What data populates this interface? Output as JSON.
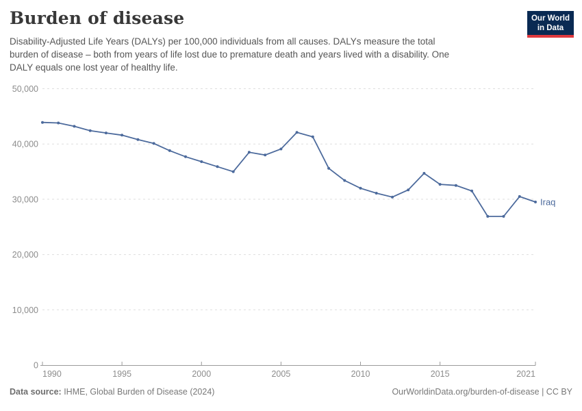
{
  "header": {
    "title": "Burden of disease",
    "subtitle_lines": [
      "Disability-Adjusted Life Years (DALYs) per 100,000 individuals from all causes. DALYs measure the total",
      "burden of disease – both from years of life lost due to premature death and years lived with a disability. One",
      "DALY equals one lost year of healthy life."
    ],
    "logo": {
      "line1": "Our World",
      "line2": "in Data",
      "bg_color": "#0a2a53",
      "accent_color": "#e0393e"
    }
  },
  "chart_data": {
    "type": "line",
    "title": "Burden of disease",
    "xlabel": "",
    "ylabel": "DALYs per 100,000",
    "xlim": [
      1990,
      2021
    ],
    "ylim": [
      0,
      50000
    ],
    "grid": "horizontal-dashed",
    "legend": "series-end-label",
    "x": [
      1990,
      1991,
      1992,
      1993,
      1994,
      1995,
      1996,
      1997,
      1998,
      1999,
      2000,
      2001,
      2002,
      2003,
      2004,
      2005,
      2006,
      2007,
      2008,
      2009,
      2010,
      2011,
      2012,
      2013,
      2014,
      2015,
      2016,
      2017,
      2018,
      2019,
      2020,
      2021
    ],
    "series": [
      {
        "name": "Iraq",
        "color": "#4c6a9c",
        "values": [
          43900,
          43800,
          43200,
          42400,
          42000,
          41600,
          40800,
          40100,
          38800,
          37700,
          36800,
          35900,
          35000,
          38500,
          38000,
          39100,
          42100,
          41300,
          35600,
          33400,
          32000,
          31100,
          30400,
          31700,
          34700,
          32700,
          32500,
          31500,
          26900,
          26900,
          30500,
          29500
        ]
      }
    ],
    "x_ticks": [
      {
        "value": 1990,
        "label": "1990"
      },
      {
        "value": 1995,
        "label": "1995"
      },
      {
        "value": 2000,
        "label": "2000"
      },
      {
        "value": 2005,
        "label": "2005"
      },
      {
        "value": 2010,
        "label": "2010"
      },
      {
        "value": 2015,
        "label": "2015"
      },
      {
        "value": 2021,
        "label": "2021"
      }
    ],
    "y_ticks": [
      {
        "value": 0,
        "label": "0"
      },
      {
        "value": 10000,
        "label": "10,000"
      },
      {
        "value": 20000,
        "label": "20,000"
      },
      {
        "value": 30000,
        "label": "30,000"
      },
      {
        "value": 40000,
        "label": "40,000"
      },
      {
        "value": 50000,
        "label": "50,000"
      }
    ]
  },
  "footer": {
    "source_label": "Data source:",
    "source_value": " IHME, Global Burden of Disease (2024)",
    "link": "OurWorldinData.org/burden-of-disease | CC BY"
  }
}
